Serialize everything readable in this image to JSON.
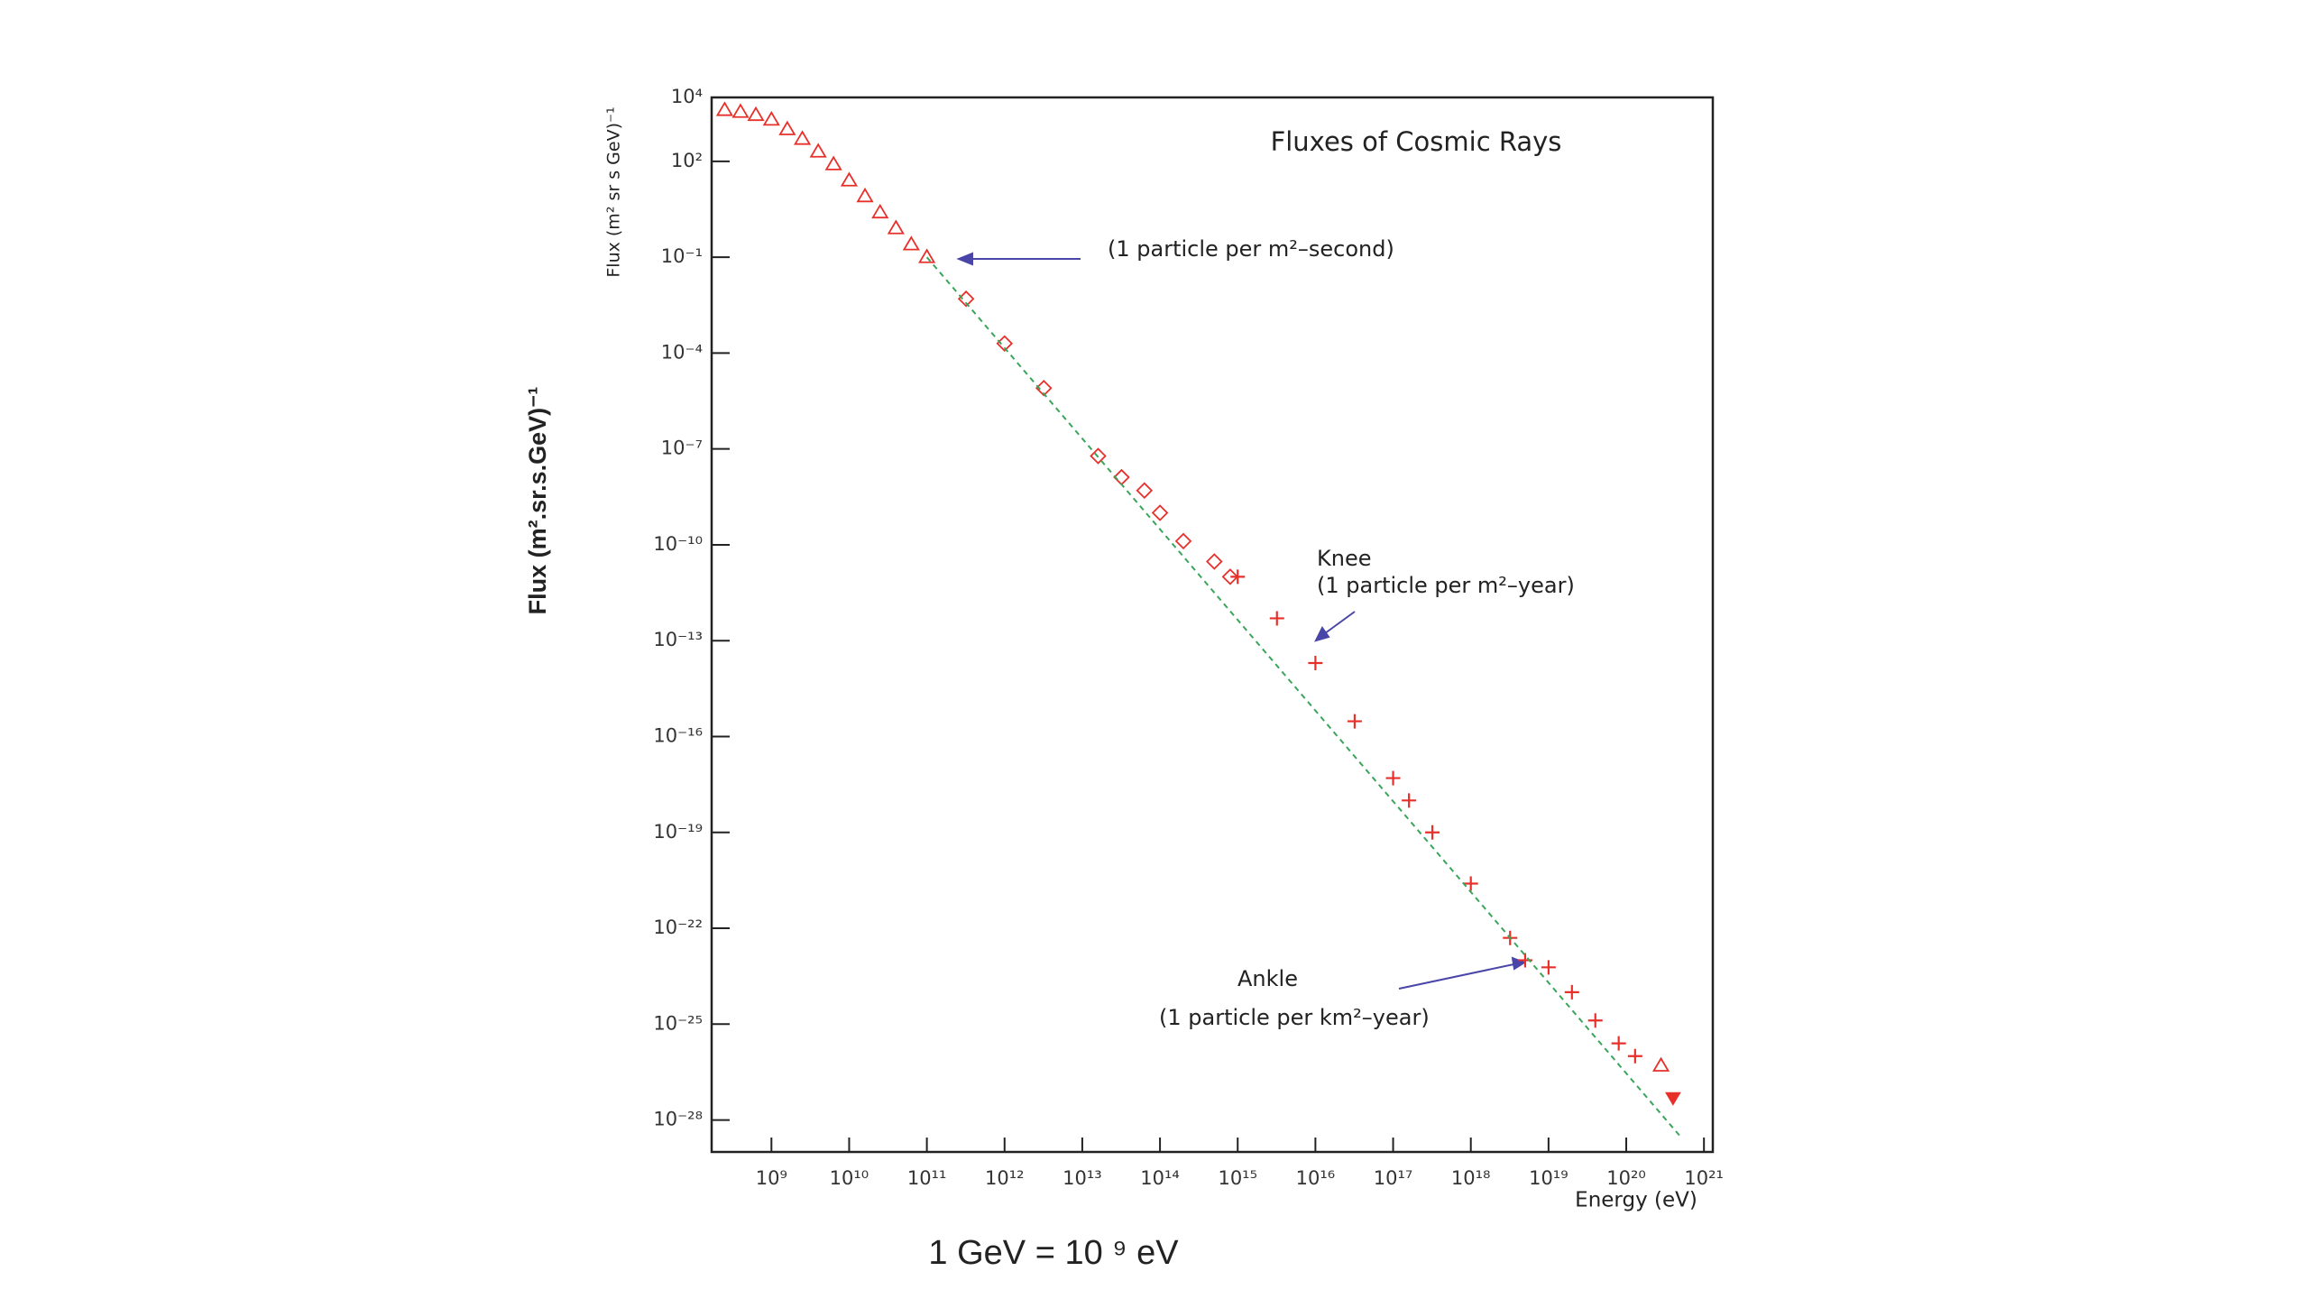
{
  "chart_data": {
    "type": "scatter",
    "title": "Fluxes of Cosmic Rays",
    "xlabel": "Energy (eV)",
    "ylabel": "Flux (m² sr s GeV)⁻¹",
    "xscale": "log",
    "yscale": "log",
    "xlim": [
      170000000.0,
      1.3e+21
    ],
    "ylim": [
      1e-29,
      10000.0
    ],
    "xticks": [
      {
        "value": 1000000000.0,
        "label": "10⁹"
      },
      {
        "value": 10000000000.0,
        "label": "10¹⁰"
      },
      {
        "value": 100000000000.0,
        "label": "10¹¹"
      },
      {
        "value": 1000000000000.0,
        "label": "10¹²"
      },
      {
        "value": 10000000000000.0,
        "label": "10¹³"
      },
      {
        "value": 100000000000000.0,
        "label": "10¹⁴"
      },
      {
        "value": 1000000000000000.0,
        "label": "10¹⁵"
      },
      {
        "value": 1e+16,
        "label": "10¹⁶"
      },
      {
        "value": 1e+17,
        "label": "10¹⁷"
      },
      {
        "value": 1e+18,
        "label": "10¹⁸"
      },
      {
        "value": 1e+19,
        "label": "10¹⁹"
      },
      {
        "value": 1e+20,
        "label": "10²⁰"
      },
      {
        "value": 1e+21,
        "label": "10²¹"
      }
    ],
    "yticks": [
      {
        "value": 10000.0,
        "label": "10⁴"
      },
      {
        "value": 100.0,
        "label": "10²"
      },
      {
        "value": 0.1,
        "label": "10⁻¹"
      },
      {
        "value": 0.0001,
        "label": "10⁻⁴"
      },
      {
        "value": 1e-07,
        "label": "10⁻⁷"
      },
      {
        "value": 1e-10,
        "label": "10⁻¹⁰"
      },
      {
        "value": 1e-13,
        "label": "10⁻¹³"
      },
      {
        "value": 1e-16,
        "label": "10⁻¹⁶"
      },
      {
        "value": 1e-19,
        "label": "10⁻¹⁹"
      },
      {
        "value": 1e-22,
        "label": "10⁻²²"
      },
      {
        "value": 1e-25,
        "label": "10⁻²⁵"
      },
      {
        "value": 1e-28,
        "label": "10⁻²⁸"
      }
    ],
    "series": [
      {
        "marker": "triangle",
        "color": "#e8302a",
        "x": [
          250000000.0,
          400000000.0,
          630000000.0,
          1000000000.0,
          1600000000.0,
          2500000000.0,
          4000000000.0,
          6300000000.0,
          10000000000.0,
          16000000000.0,
          25000000000.0,
          40000000000.0,
          63000000000.0,
          100000000000.0,
          2.8e+20
        ],
        "values": [
          4000.0,
          3500.0,
          2800.0,
          2000.0,
          1000.0,
          500.0,
          200.0,
          80.0,
          25.0,
          8,
          2.5,
          0.8,
          0.25,
          0.1,
          5e-27
        ]
      },
      {
        "marker": "diamond",
        "color": "#e8302a",
        "x": [
          320000000000.0,
          1000000000000.0,
          3200000000000.0,
          16000000000000.0,
          32000000000000.0,
          63000000000000.0,
          100000000000000.0,
          200000000000000.0,
          500000000000000.0,
          800000000000000.0
        ],
        "values": [
          0.005,
          0.0002,
          8e-06,
          6e-08,
          1.3e-08,
          5e-09,
          1e-09,
          1.3e-10,
          3e-11,
          1e-11
        ]
      },
      {
        "marker": "cross",
        "color": "#e8302a",
        "x": [
          1000000000000000.0,
          3200000000000000.0,
          1e+16,
          3.2e+16,
          1e+17,
          1.6e+17,
          3.2e+17,
          1e+18,
          3.2e+18,
          5e+18,
          1e+19,
          2e+19,
          4e+19,
          8e+19,
          1.3e+20
        ],
        "values": [
          1e-11,
          5e-13,
          2e-14,
          3e-16,
          5e-18,
          1e-18,
          1e-19,
          2.5e-21,
          5e-23,
          1e-23,
          6e-24,
          1e-24,
          1.3e-25,
          2.5e-26,
          1e-26
        ]
      },
      {
        "marker": "triangle-down-filled",
        "color": "#e8302a",
        "x": [
          4e+20
        ],
        "values": [
          5e-28
        ]
      },
      {
        "marker": "dashed-line",
        "color": "#3aa55a",
        "x": [
          100000000000.0,
          5e+20
        ],
        "values": [
          0.1,
          3e-29
        ]
      }
    ],
    "annotations": [
      "(1 particle per m²–second)",
      "Knee",
      "(1 particle per m²–year)",
      "Ankle",
      "(1 particle per km²–year)"
    ]
  },
  "slide": {
    "side_label": "Flux (m².sr.s.GeV)⁻¹",
    "footnote": "1 GeV = 10 ⁹ eV"
  }
}
